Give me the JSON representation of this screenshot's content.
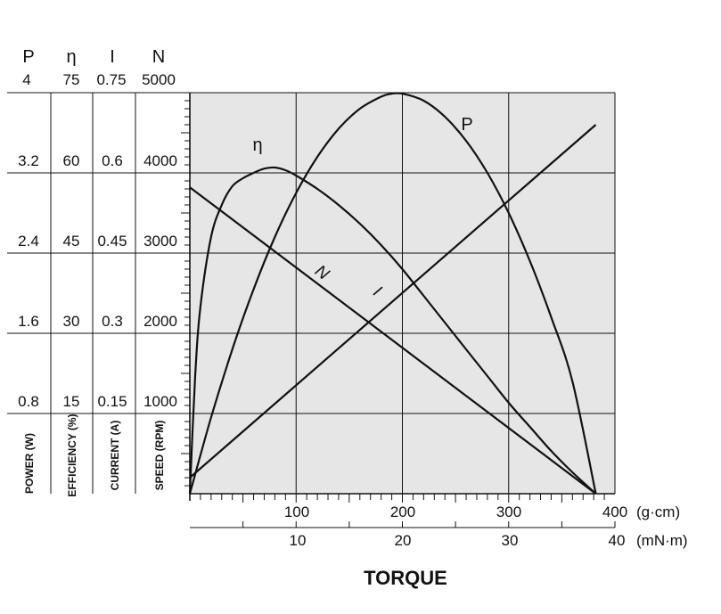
{
  "chart_data": {
    "type": "line",
    "xlabel": "TORQUE",
    "x_axes": [
      {
        "unit": "(g·cm)",
        "ticks": [
          "100",
          "200",
          "300",
          "400"
        ],
        "range": [
          0,
          400
        ]
      },
      {
        "unit": "(mN·m)",
        "ticks": [
          "10",
          "20",
          "30",
          "40"
        ],
        "range": [
          0,
          40
        ]
      }
    ],
    "y_axes": [
      {
        "symbol": "P",
        "label": "POWER (W)",
        "max": "4",
        "ticks": [
          "3.2",
          "2.4",
          "1.6",
          "0.8"
        ],
        "range": [
          0,
          4
        ]
      },
      {
        "symbol": "η",
        "label": "EFFICIENCY (%)",
        "max": "75",
        "ticks": [
          "60",
          "45",
          "30",
          "15"
        ],
        "range": [
          0,
          75
        ]
      },
      {
        "symbol": "I",
        "label": "CURRENT (A)",
        "max": "0.75",
        "ticks": [
          "0.6",
          "0.45",
          "0.3",
          "0.15"
        ],
        "range": [
          0,
          0.75
        ]
      },
      {
        "symbol": "N",
        "label": "SPEED (RPM)",
        "max": "5000",
        "ticks": [
          "4000",
          "3000",
          "2000",
          "1000"
        ],
        "range": [
          0,
          5000
        ]
      }
    ],
    "grid": true,
    "series": [
      {
        "name": "N",
        "axis": 3,
        "x": [
          0,
          382
        ],
        "y": [
          3820,
          0
        ]
      },
      {
        "name": "I",
        "axis": 2,
        "x": [
          0,
          382
        ],
        "y": [
          0.03,
          0.69
        ]
      },
      {
        "name": "P",
        "axis": 0,
        "x": [
          0,
          20,
          40,
          60,
          80,
          100,
          120,
          140,
          160,
          180,
          190,
          200,
          220,
          240,
          260,
          280,
          300,
          320,
          340,
          360,
          382
        ],
        "y": [
          0,
          0.76,
          1.44,
          2.04,
          2.56,
          3.0,
          3.36,
          3.64,
          3.84,
          3.96,
          3.99,
          3.99,
          3.92,
          3.76,
          3.52,
          3.2,
          2.8,
          2.32,
          1.76,
          1.12,
          0
        ]
      },
      {
        "name": "η",
        "axis": 1,
        "x": [
          0,
          5,
          10,
          20,
          30,
          40,
          50,
          60,
          70,
          80,
          90,
          100,
          120,
          140,
          160,
          180,
          200,
          220,
          240,
          260,
          280,
          300,
          320,
          340,
          360,
          382
        ],
        "y": [
          0,
          22,
          35,
          48,
          54,
          57.5,
          59,
          60,
          60.8,
          61,
          60.5,
          59.5,
          57,
          54,
          50.5,
          46.5,
          42,
          37,
          32,
          27,
          22,
          17,
          12.5,
          8,
          4,
          0
        ]
      }
    ]
  }
}
